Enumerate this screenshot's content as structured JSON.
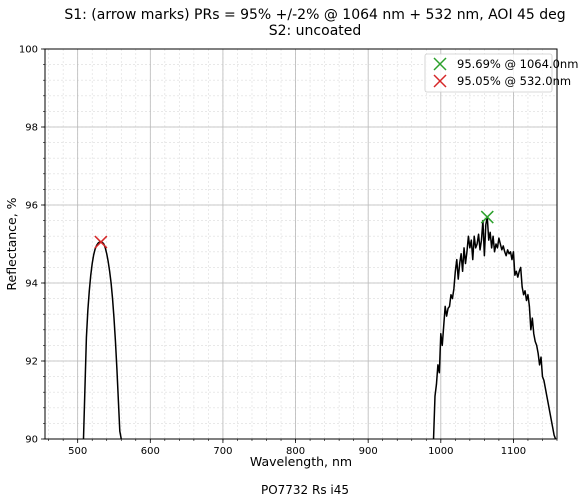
{
  "chart_data": {
    "type": "line",
    "title": "S1: (arrow marks) PRs = 95% +/-2% @ 1064 nm + 532 nm, AOI 45 deg",
    "subtitle": "S2: uncoated",
    "xlabel": "Wavelength, nm",
    "ylabel": "Reflectance, %",
    "footer": "PO7732 Rs i45",
    "xlim": [
      455,
      1160
    ],
    "ylim": [
      90,
      100
    ],
    "x_ticks": [
      500,
      600,
      700,
      800,
      900,
      1000,
      1100
    ],
    "y_ticks": [
      90,
      92,
      94,
      96,
      98,
      100
    ],
    "x_minor_step": 20,
    "y_minor_step": 0.4,
    "grid": true,
    "legend_position": "top-right",
    "series": [
      {
        "x": [
          508,
          510,
          512,
          514,
          516,
          518,
          520,
          522,
          524,
          526,
          528,
          530,
          532,
          534,
          536,
          538,
          540,
          542,
          544,
          546,
          548,
          550,
          552,
          554,
          556,
          558,
          560
        ],
        "values": [
          90,
          91.3,
          92.6,
          93.3,
          93.8,
          94.2,
          94.5,
          94.72,
          94.87,
          94.96,
          95.02,
          95.05,
          95.05,
          95.04,
          95.0,
          94.9,
          94.75,
          94.55,
          94.3,
          94.0,
          93.6,
          93.1,
          92.5,
          91.8,
          91.0,
          90.2,
          90
        ]
      },
      {
        "x": [
          990,
          992,
          994,
          996,
          998,
          1000,
          1002,
          1004,
          1006,
          1008,
          1010,
          1012,
          1014,
          1016,
          1018,
          1020,
          1022,
          1024,
          1026,
          1028,
          1030,
          1032,
          1034,
          1036,
          1038,
          1040,
          1042,
          1044,
          1046,
          1048,
          1050,
          1052,
          1054,
          1056,
          1058,
          1060,
          1062,
          1064,
          1066,
          1068,
          1070,
          1072,
          1074,
          1076,
          1078,
          1080,
          1082,
          1084,
          1086,
          1088,
          1090,
          1092,
          1094,
          1096,
          1098,
          1100,
          1102,
          1104,
          1106,
          1108,
          1110,
          1112,
          1114,
          1116,
          1118,
          1120,
          1122,
          1124,
          1126,
          1128,
          1130,
          1132,
          1134,
          1136,
          1138,
          1140,
          1142,
          1144,
          1146,
          1148,
          1150,
          1152,
          1154,
          1156,
          1158
        ],
        "values": [
          90,
          91.1,
          91.4,
          91.9,
          91.7,
          92.7,
          92.4,
          92.9,
          93.4,
          93.15,
          93.35,
          93.4,
          93.7,
          93.6,
          93.85,
          94.3,
          94.6,
          94.1,
          94.5,
          94.75,
          94.3,
          94.9,
          94.5,
          94.8,
          95.2,
          94.9,
          95.1,
          94.6,
          95.2,
          94.9,
          95.0,
          95.25,
          94.85,
          95.1,
          95.6,
          94.7,
          95.5,
          95.69,
          95.1,
          95.3,
          94.9,
          95.2,
          94.8,
          95.0,
          94.9,
          95.15,
          95.0,
          94.85,
          94.95,
          94.8,
          94.7,
          94.85,
          94.75,
          94.8,
          94.6,
          94.8,
          94.2,
          94.3,
          94.15,
          94.3,
          94.4,
          93.9,
          93.7,
          93.8,
          93.55,
          93.7,
          93.4,
          92.8,
          93.1,
          92.7,
          92.5,
          92.4,
          92.2,
          91.9,
          92.1,
          91.6,
          91.5,
          91.3,
          91.1,
          90.9,
          90.7,
          90.5,
          90.3,
          90.1,
          90.0
        ]
      }
    ],
    "markers": [
      {
        "x": 1064,
        "y": 95.69,
        "label": "95.69% @ 1064.0nm",
        "color": "#2ca02c"
      },
      {
        "x": 532,
        "y": 95.05,
        "label": "95.05% @ 532.0nm",
        "color": "#d62728"
      }
    ],
    "line_color": "#000000"
  }
}
